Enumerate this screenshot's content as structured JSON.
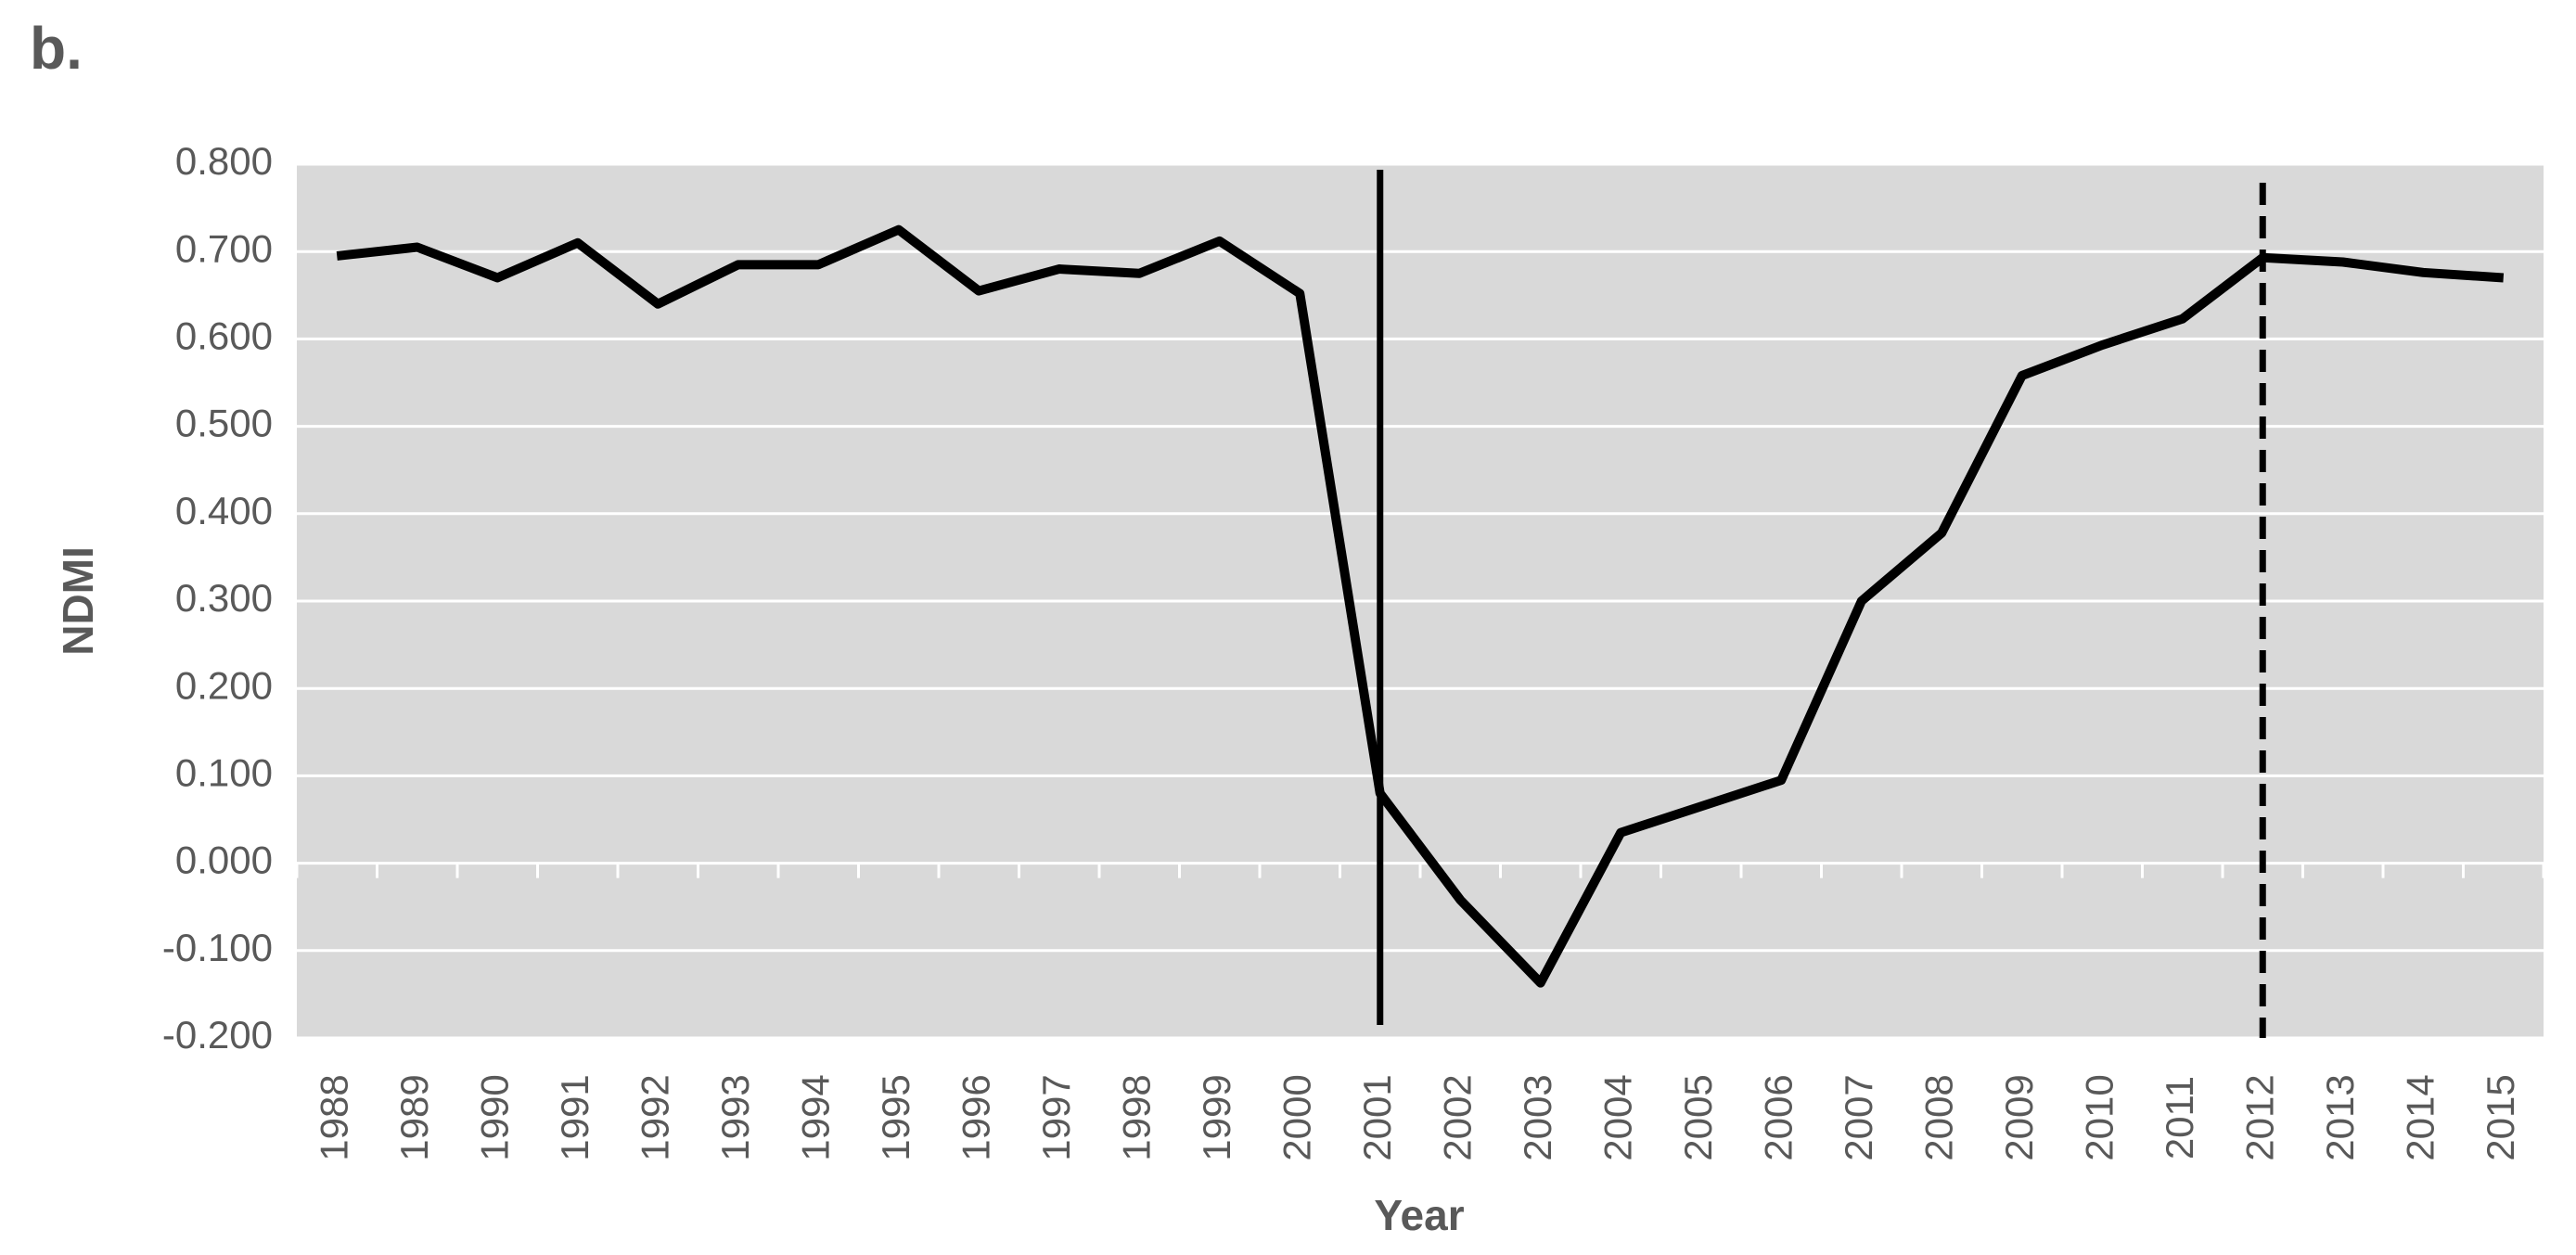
{
  "chart_data": {
    "type": "line",
    "panel_label": "b.",
    "x_label": "Year",
    "y_label": "NDMI",
    "x": [
      1988,
      1989,
      1990,
      1991,
      1992,
      1993,
      1994,
      1995,
      1996,
      1997,
      1998,
      1999,
      2000,
      2001,
      2002,
      2003,
      2004,
      2005,
      2006,
      2007,
      2008,
      2009,
      2010,
      2011,
      2012,
      2013,
      2014,
      2015
    ],
    "series": [
      {
        "color": "#000000",
        "values": [
          0.695,
          0.705,
          0.67,
          0.71,
          0.64,
          0.685,
          0.685,
          0.725,
          0.655,
          0.68,
          0.675,
          0.712,
          0.652,
          0.08,
          -0.042,
          -0.137,
          0.035,
          0.065,
          0.095,
          0.3,
          0.378,
          0.558,
          0.593,
          0.623,
          0.693,
          0.688,
          0.676,
          0.67
        ]
      }
    ],
    "ylim": [
      -0.2,
      0.8
    ],
    "yticks": [
      {
        "value": -0.2,
        "label": "-0.200"
      },
      {
        "value": -0.1,
        "label": "-0.100"
      },
      {
        "value": 0,
        "label": "0.000"
      },
      {
        "value": 0.1,
        "label": "0.100"
      },
      {
        "value": 0.2,
        "label": "0.200"
      },
      {
        "value": 0.3,
        "label": "0.300"
      },
      {
        "value": 0.4,
        "label": "0.400"
      },
      {
        "value": 0.5,
        "label": "0.500"
      },
      {
        "value": 0.6,
        "label": "0.600"
      },
      {
        "value": 0.7,
        "label": "0.700"
      },
      {
        "value": 0.8,
        "label": "0.800"
      }
    ],
    "grid": true,
    "background": "#d9d9d9",
    "vlines": [
      {
        "x": 2001,
        "dashed": false
      },
      {
        "x": 2012,
        "dashed": true
      }
    ]
  }
}
